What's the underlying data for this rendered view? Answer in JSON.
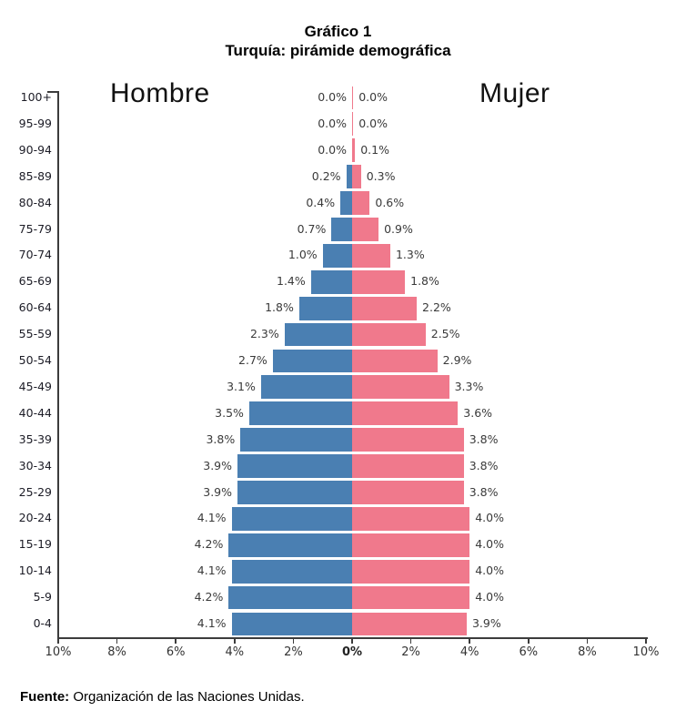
{
  "title": {
    "line1": "Gráfico 1",
    "line2": "Turquía: pirámide demográfica"
  },
  "source_note": {
    "prefix": "Fuente:",
    "text": " Organización de las Naciones Unidas."
  },
  "chart_data": {
    "type": "bar",
    "subtype": "population-pyramid",
    "title": "Turquía: pirámide demográfica",
    "left_series_label": "Hombre",
    "right_series_label": "Mujer",
    "categories": [
      "100+",
      "95-99",
      "90-94",
      "85-89",
      "80-84",
      "75-79",
      "70-74",
      "65-69",
      "60-64",
      "55-59",
      "50-54",
      "45-49",
      "40-44",
      "35-39",
      "30-34",
      "25-29",
      "20-24",
      "15-19",
      "10-14",
      "5-9",
      "0-4"
    ],
    "series": [
      {
        "name": "Hombre",
        "side": "left",
        "color": "#4A7FB2",
        "values": [
          0.0,
          0.0,
          0.0,
          0.2,
          0.4,
          0.7,
          1.0,
          1.4,
          1.8,
          2.3,
          2.7,
          3.1,
          3.5,
          3.8,
          3.9,
          3.9,
          4.1,
          4.2,
          4.1,
          4.2,
          4.1
        ],
        "labels": [
          "0.0%",
          "0.0%",
          "0.0%",
          "0.2%",
          "0.4%",
          "0.7%",
          "1.0%",
          "1.4%",
          "1.8%",
          "2.3%",
          "2.7%",
          "3.1%",
          "3.5%",
          "3.8%",
          "3.9%",
          "3.9%",
          "4.1%",
          "4.2%",
          "4.1%",
          "4.2%",
          "4.1%"
        ]
      },
      {
        "name": "Mujer",
        "side": "right",
        "color": "#F0798C",
        "values": [
          0.0,
          0.0,
          0.1,
          0.3,
          0.6,
          0.9,
          1.3,
          1.8,
          2.2,
          2.5,
          2.9,
          3.3,
          3.6,
          3.8,
          3.8,
          3.8,
          4.0,
          4.0,
          4.0,
          4.0,
          3.9
        ],
        "labels": [
          "0.0%",
          "0.0%",
          "0.1%",
          "0.3%",
          "0.6%",
          "0.9%",
          "1.3%",
          "1.8%",
          "2.2%",
          "2.5%",
          "2.9%",
          "3.3%",
          "3.6%",
          "3.8%",
          "3.8%",
          "3.8%",
          "4.0%",
          "4.0%",
          "4.0%",
          "4.0%",
          "3.9%"
        ]
      }
    ],
    "x_axis": {
      "tick_labels": [
        "10%",
        "8%",
        "6%",
        "4%",
        "2%",
        "0%",
        "2%",
        "4%",
        "6%",
        "8%",
        "10%"
      ],
      "tick_percents": [
        -10,
        -8,
        -6,
        -4,
        -2,
        0,
        2,
        4,
        6,
        8,
        10
      ],
      "xlim_percent": [
        -10,
        10
      ]
    },
    "grid": false,
    "value_suffix": "%"
  }
}
